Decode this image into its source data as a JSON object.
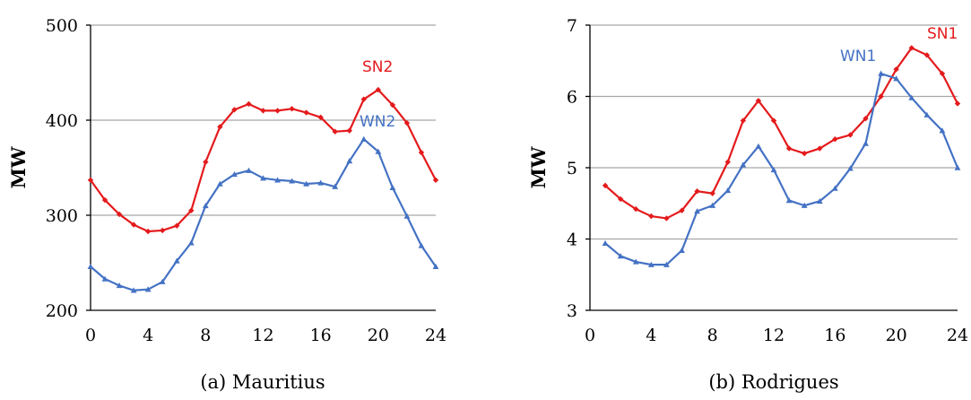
{
  "chart_data": [
    {
      "type": "line",
      "caption": "(a) Mauritius",
      "ylabel": "MW",
      "xlabel": "",
      "xlim": [
        0,
        24
      ],
      "ylim": [
        200,
        500
      ],
      "x_ticks": [
        "0",
        "4",
        "8",
        "12",
        "16",
        "20",
        "24"
      ],
      "y_ticks": [
        "200",
        "300",
        "400",
        "500"
      ],
      "grid": true,
      "series": [
        {
          "name": "SN2",
          "color": "#e41a1c",
          "marker": "diamond",
          "x": [
            0,
            1,
            2,
            3,
            4,
            5,
            6,
            7,
            8,
            9,
            10,
            11,
            12,
            13,
            14,
            15,
            16,
            17,
            18,
            19,
            20,
            21,
            22,
            23,
            24
          ],
          "values": [
            337,
            316,
            301,
            290,
            283,
            284,
            289,
            305,
            356,
            393,
            411,
            417,
            410,
            410,
            412,
            408,
            403,
            388,
            389,
            422,
            432,
            416,
            397,
            366,
            337
          ]
        },
        {
          "name": "WN2",
          "color": "#4472c4",
          "marker": "triangle",
          "x": [
            0,
            1,
            2,
            3,
            4,
            5,
            6,
            7,
            8,
            9,
            10,
            11,
            12,
            13,
            14,
            15,
            16,
            17,
            18,
            19,
            20,
            21,
            22,
            23,
            24
          ],
          "values": [
            246,
            233,
            226,
            221,
            222,
            230,
            252,
            271,
            310,
            333,
            343,
            347,
            339,
            337,
            336,
            333,
            334,
            330,
            357,
            380,
            367,
            329,
            299,
            268,
            246
          ]
        }
      ]
    },
    {
      "type": "line",
      "caption": "(b) Rodrigues",
      "ylabel": "MW",
      "xlabel": "",
      "xlim": [
        0,
        24
      ],
      "ylim": [
        3,
        7
      ],
      "x_ticks": [
        "0",
        "4",
        "8",
        "12",
        "16",
        "20",
        "24"
      ],
      "y_ticks": [
        "3",
        "4",
        "5",
        "6",
        "7"
      ],
      "grid": true,
      "series": [
        {
          "name": "SN1",
          "color": "#e41a1c",
          "marker": "diamond",
          "x": [
            1,
            2,
            3,
            4,
            5,
            6,
            7,
            8,
            9,
            10,
            11,
            12,
            13,
            14,
            15,
            16,
            17,
            18,
            19,
            20,
            21,
            22,
            23,
            24
          ],
          "values": [
            4.75,
            4.56,
            4.42,
            4.32,
            4.29,
            4.4,
            4.67,
            4.64,
            5.08,
            5.66,
            5.94,
            5.66,
            5.27,
            5.2,
            5.27,
            5.4,
            5.46,
            5.69,
            6.0,
            6.38,
            6.68,
            6.58,
            6.32,
            5.9
          ]
        },
        {
          "name": "WN1",
          "color": "#4472c4",
          "marker": "triangle",
          "x": [
            1,
            2,
            3,
            4,
            5,
            6,
            7,
            8,
            9,
            10,
            11,
            12,
            13,
            14,
            15,
            16,
            17,
            18,
            19,
            20,
            21,
            22,
            23,
            24
          ],
          "values": [
            3.94,
            3.76,
            3.68,
            3.64,
            3.64,
            3.84,
            4.39,
            4.47,
            4.68,
            5.04,
            5.3,
            4.97,
            4.54,
            4.47,
            4.53,
            4.71,
            4.99,
            5.34,
            6.32,
            6.25,
            5.98,
            5.74,
            5.52,
            5.0
          ]
        }
      ]
    }
  ]
}
